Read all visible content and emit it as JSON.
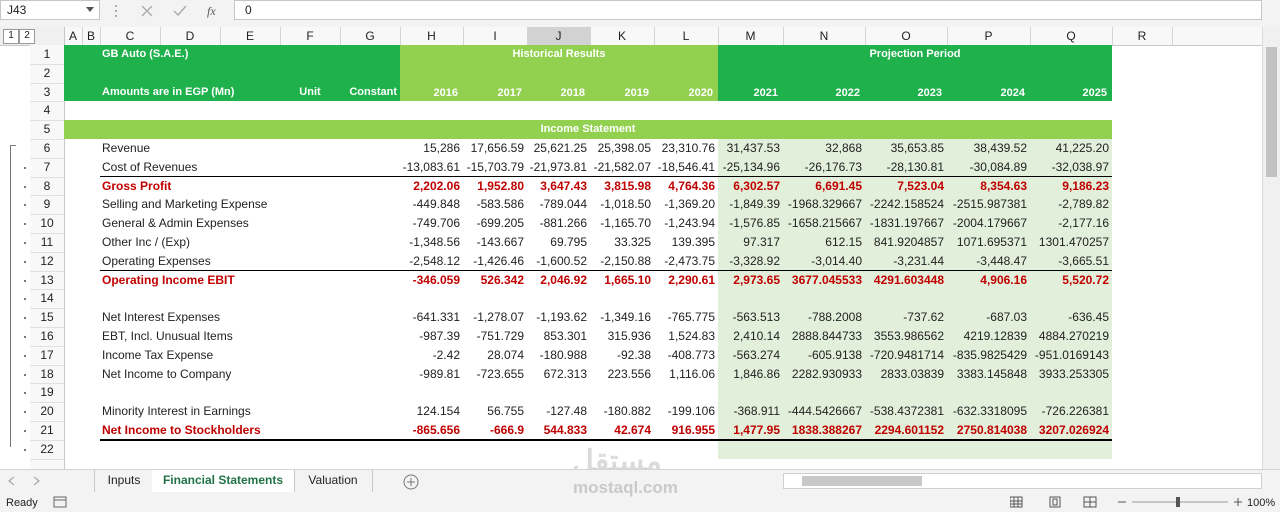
{
  "name_box": "J43",
  "formula": "0",
  "outline_levels": [
    "1",
    "2"
  ],
  "columns": [
    "A",
    "B",
    "C",
    "D",
    "E",
    "F",
    "G",
    "H",
    "I",
    "J",
    "K",
    "L",
    "M",
    "N",
    "O",
    "P",
    "Q",
    "R"
  ],
  "row_numbers": [
    "1",
    "2",
    "3",
    "4",
    "5",
    "6",
    "7",
    "8",
    "9",
    "10",
    "11",
    "12",
    "13",
    "14",
    "15",
    "16",
    "17",
    "18",
    "19",
    "20",
    "21",
    "22"
  ],
  "header": {
    "company": "GB Auto (S.A.E.)",
    "historical": "Historical Results",
    "projection": "Projection Period",
    "units_note": "Amounts are in EGP (Mn)",
    "unit": "Unit",
    "constant": "Constant",
    "years": [
      "2016",
      "2017",
      "2018",
      "2019",
      "2020",
      "2021",
      "2022",
      "2023",
      "2024",
      "2025"
    ]
  },
  "section_title": "Income Statement",
  "lines": [
    {
      "label": "Revenue",
      "emphasis": false,
      "values": [
        "15,286",
        "17,656.59",
        "25,621.25",
        "25,398.05",
        "23,310.76",
        "31,437.53",
        "32,868",
        "35,653.85",
        "38,439.52",
        "41,225.20"
      ]
    },
    {
      "label": "Cost of Revenues",
      "emphasis": false,
      "values": [
        "-13,083.61",
        "-15,703.79",
        "-21,973.81",
        "-21,582.07",
        "-18,546.41",
        "-25,134.96",
        "-26,176.73",
        "-28,130.81",
        "-30,084.89",
        "-32,038.97"
      ]
    },
    {
      "label": "Gross Profit",
      "emphasis": true,
      "values": [
        "2,202.06",
        "1,952.80",
        "3,647.43",
        "3,815.98",
        "4,764.36",
        "6,302.57",
        "6,691.45",
        "7,523.04",
        "8,354.63",
        "9,186.23"
      ]
    },
    {
      "label": "Selling and Marketing Expense",
      "emphasis": false,
      "values": [
        "-449.848",
        "-583.586",
        "-789.044",
        "-1,018.50",
        "-1,369.20",
        "-1,849.39",
        "-1968.329667",
        "-2242.158524",
        "-2515.987381",
        "-2,789.82"
      ]
    },
    {
      "label": "General & Admin Expenses",
      "emphasis": false,
      "values": [
        "-749.706",
        "-699.205",
        "-881.266",
        "-1,165.70",
        "-1,243.94",
        "-1,576.85",
        "-1658.215667",
        "-1831.197667",
        "-2004.179667",
        "-2,177.16"
      ]
    },
    {
      "label": "Other Inc / (Exp)",
      "emphasis": false,
      "values": [
        "-1,348.56",
        "-143.667",
        "69.795",
        "33.325",
        "139.395",
        "97.317",
        "612.15",
        "841.9204857",
        "1071.695371",
        "1301.470257"
      ]
    },
    {
      "label": "Operating Expenses",
      "emphasis": false,
      "values": [
        "-2,548.12",
        "-1,426.46",
        "-1,600.52",
        "-2,150.88",
        "-2,473.75",
        "-3,328.92",
        "-3,014.40",
        "-3,231.44",
        "-3,448.47",
        "-3,665.51"
      ]
    },
    {
      "label": "Operating Income EBIT",
      "emphasis": true,
      "values": [
        "-346.059",
        "526.342",
        "2,046.92",
        "1,665.10",
        "2,290.61",
        "2,973.65",
        "3677.045533",
        "4291.603448",
        "4,906.16",
        "5,520.72"
      ]
    },
    {
      "label": "Net Interest Expenses",
      "emphasis": false,
      "values": [
        "-641.331",
        "-1,278.07",
        "-1,193.62",
        "-1,349.16",
        "-765.775",
        "-563.513",
        "-788.2008",
        "-737.62",
        "-687.03",
        "-636.45"
      ]
    },
    {
      "label": "EBT, Incl. Unusual Items",
      "emphasis": false,
      "values": [
        "-987.39",
        "-751.729",
        "853.301",
        "315.936",
        "1,524.83",
        "2,410.14",
        "2888.844733",
        "3553.986562",
        "4219.12839",
        "4884.270219"
      ]
    },
    {
      "label": "Income Tax Expense",
      "emphasis": false,
      "values": [
        "-2.42",
        "28.074",
        "-180.988",
        "-92.38",
        "-408.773",
        "-563.274",
        "-605.9138",
        "-720.9481714",
        "-835.9825429",
        "-951.0169143"
      ]
    },
    {
      "label": "Net Income to Company",
      "emphasis": false,
      "values": [
        "-989.81",
        "-723.655",
        "672.313",
        "223.556",
        "1,116.06",
        "1,846.86",
        "2282.930933",
        "2833.03839",
        "3383.145848",
        "3933.253305"
      ]
    },
    {
      "label": "Minority Interest in Earnings",
      "emphasis": false,
      "values": [
        "124.154",
        "56.755",
        "-127.48",
        "-180.882",
        "-199.106",
        "-368.911",
        "-444.5426667",
        "-538.4372381",
        "-632.3318095",
        "-726.226381"
      ]
    },
    {
      "label": "Net Income to Stockholders",
      "emphasis": true,
      "values": [
        "-865.656",
        "-666.9",
        "544.833",
        "42.674",
        "916.955",
        "1,477.95",
        "1838.388267",
        "2294.601152",
        "2750.814038",
        "3207.026924"
      ]
    }
  ],
  "sheet_tabs": [
    "Inputs",
    "Financial Statements",
    "Valuation"
  ],
  "active_tab": 1,
  "status": "Ready",
  "zoom": "100%",
  "watermark": {
    "arabic": "مستقل",
    "latin": "mostaql.com"
  }
}
